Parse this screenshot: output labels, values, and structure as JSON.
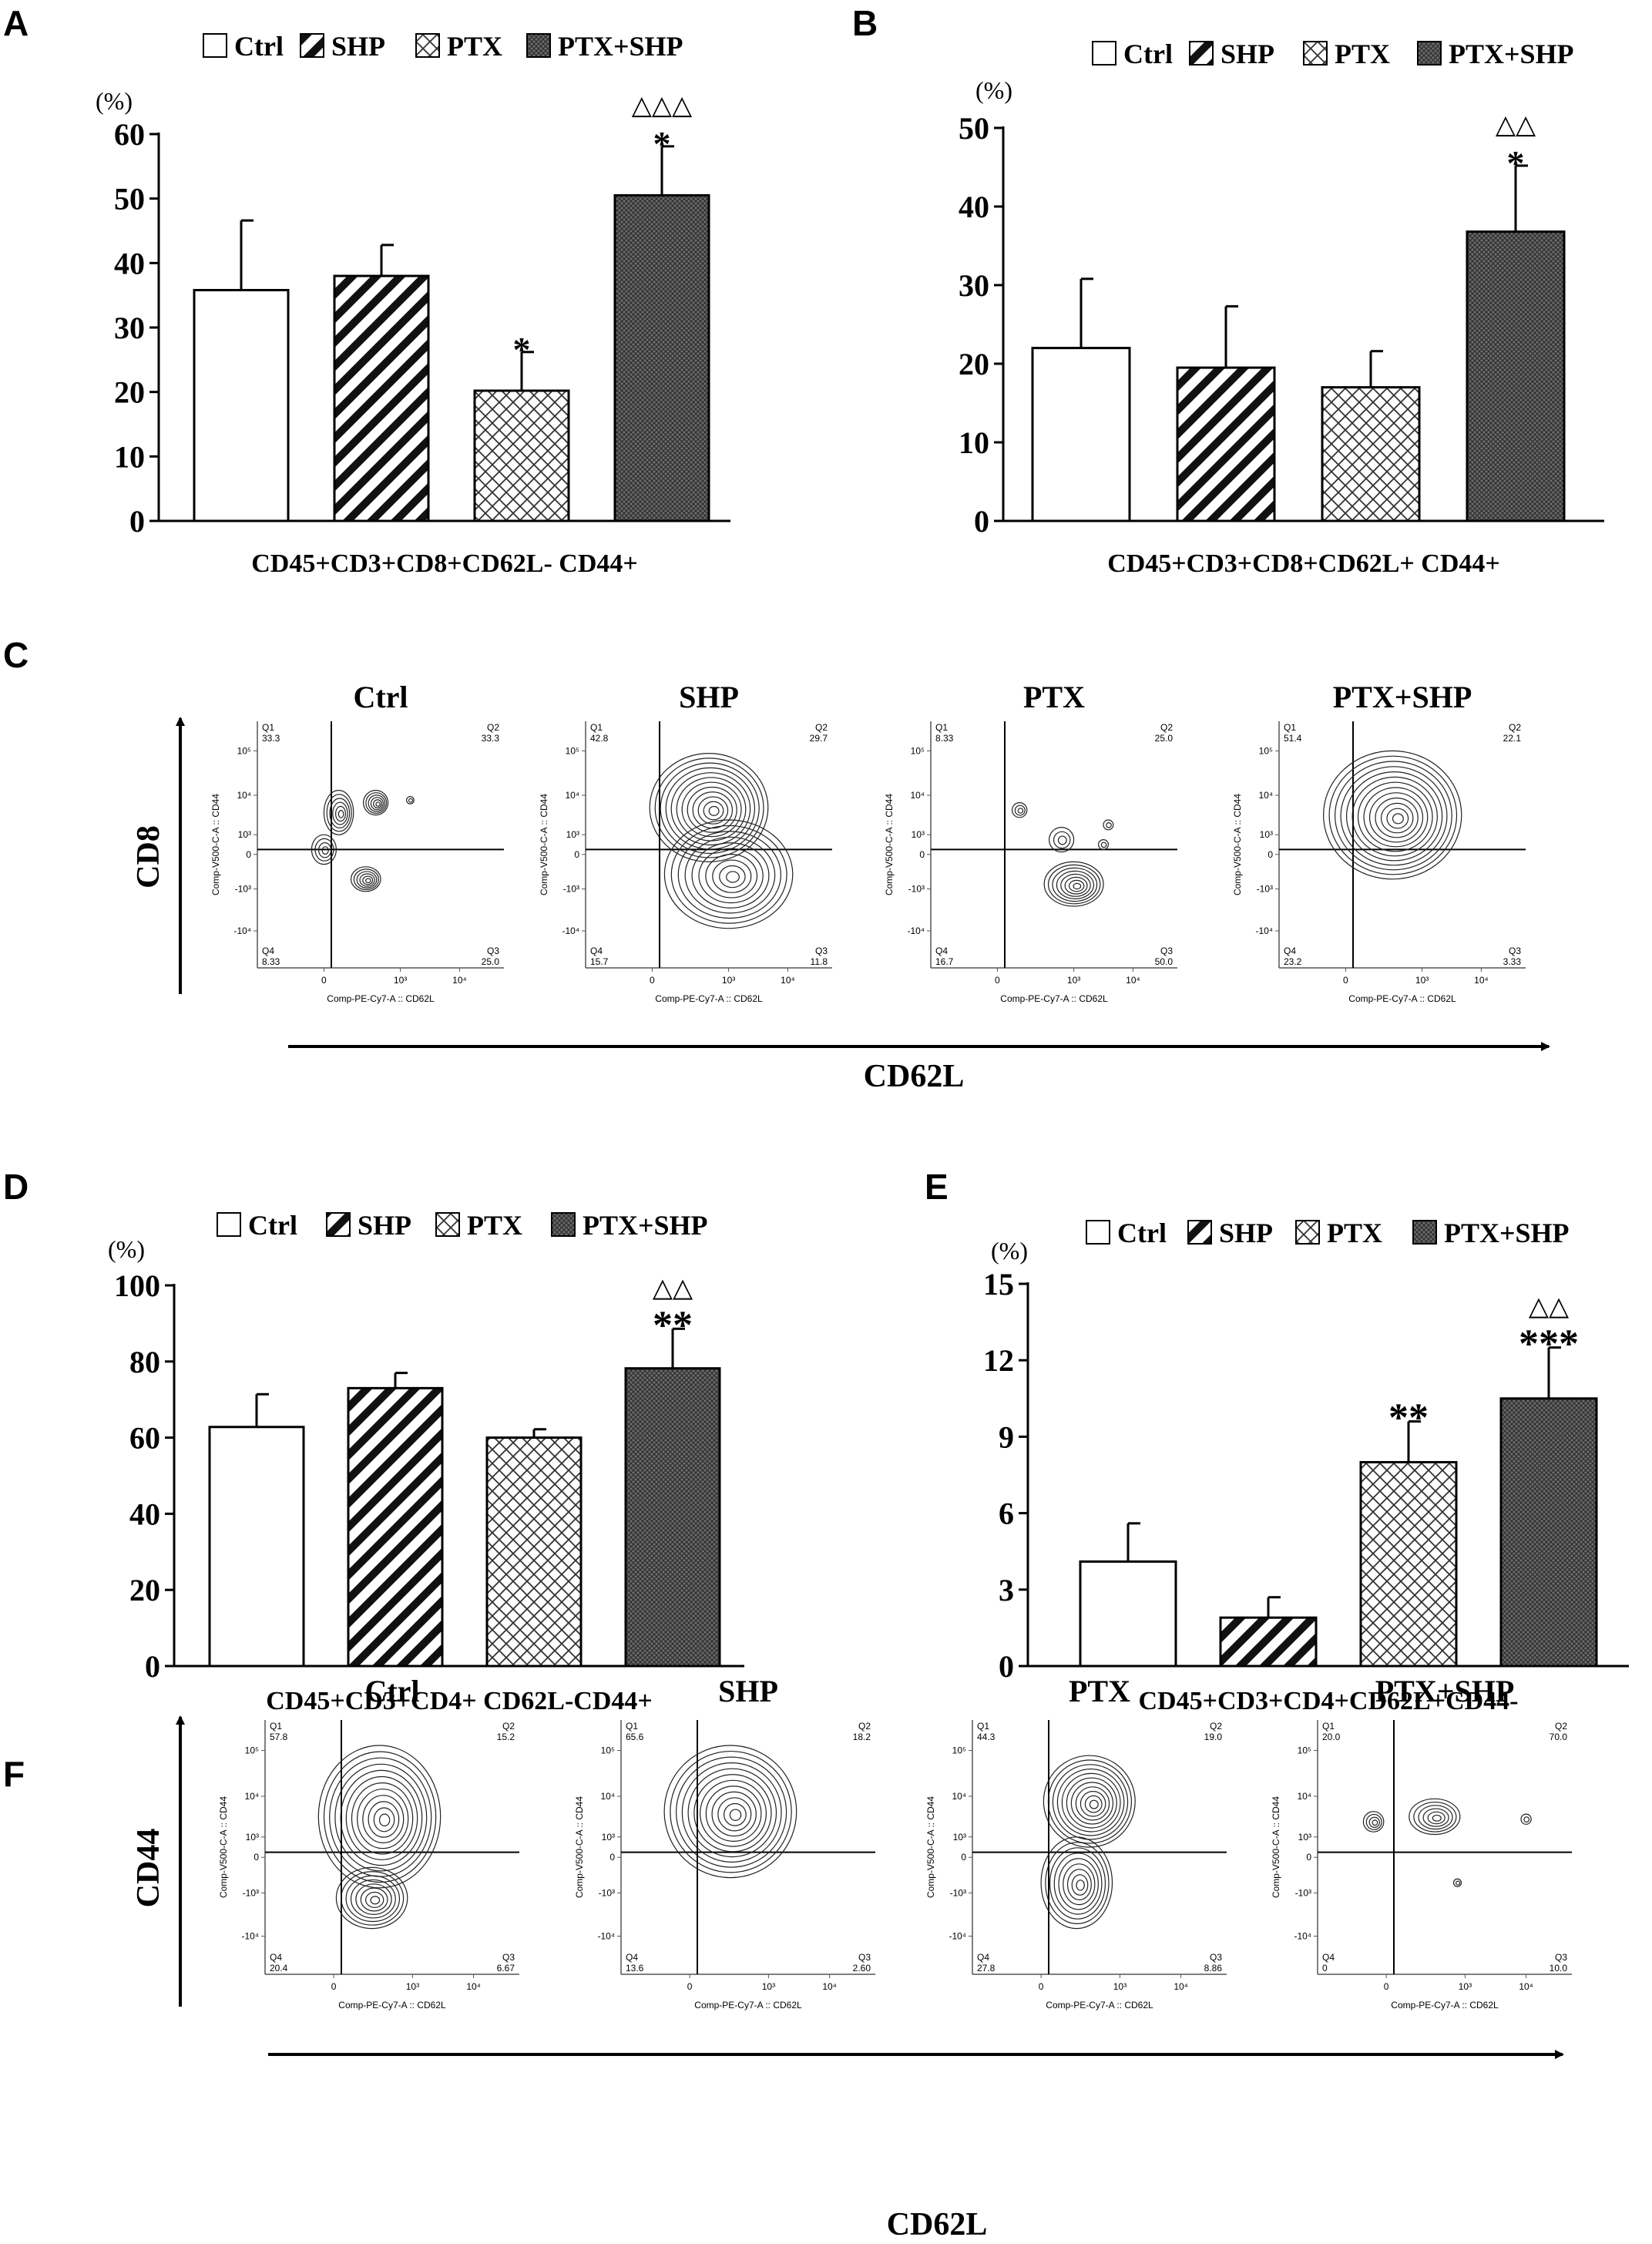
{
  "legend_labels": [
    "Ctrl",
    "SHP",
    "PTX",
    "PTX+SHP"
  ],
  "panel_letters": {
    "A": "A",
    "B": "B",
    "C": "C",
    "D": "D",
    "E": "E",
    "F": "F"
  },
  "chart_data": [
    {
      "panel": "A",
      "type": "bar",
      "categories": [
        "Ctrl",
        "SHP",
        "PTX",
        "PTX+SHP"
      ],
      "values": [
        35.8,
        38.0,
        20.2,
        50.5
      ],
      "errors": [
        10.8,
        4.8,
        6.0,
        7.6
      ],
      "significance": [
        "",
        "",
        "*",
        "*"
      ],
      "significance_vs_ptx": [
        "",
        "",
        "",
        "△△△"
      ],
      "ylim": [
        0,
        60
      ],
      "yticks": [
        "0",
        "10",
        "20",
        "30",
        "40",
        "50",
        "60"
      ],
      "yunit": "(%)",
      "xlabel": "CD45+CD3+CD8+CD62L- CD44+"
    },
    {
      "panel": "B",
      "type": "bar",
      "categories": [
        "Ctrl",
        "SHP",
        "PTX",
        "PTX+SHP"
      ],
      "values": [
        22.0,
        19.5,
        17.0,
        36.8
      ],
      "errors": [
        8.8,
        7.8,
        4.6,
        8.4
      ],
      "significance": [
        "",
        "",
        "",
        "*"
      ],
      "significance_vs_ptx": [
        "",
        "",
        "",
        "△△"
      ],
      "ylim": [
        0,
        50
      ],
      "yticks": [
        "0",
        "10",
        "20",
        "30",
        "40",
        "50"
      ],
      "yunit": "(%)",
      "xlabel": "CD45+CD3+CD8+CD62L+ CD44+"
    },
    {
      "panel": "D",
      "type": "bar",
      "categories": [
        "Ctrl",
        "SHP",
        "PTX",
        "PTX+SHP"
      ],
      "values": [
        62.8,
        73.0,
        60.0,
        78.2
      ],
      "errors": [
        8.6,
        4.0,
        2.2,
        10.4
      ],
      "significance": [
        "",
        "",
        "",
        "**"
      ],
      "significance_vs_ptx": [
        "",
        "",
        "",
        "△△"
      ],
      "ylim": [
        0,
        100
      ],
      "yticks": [
        "0",
        "20",
        "40",
        "60",
        "80",
        "100"
      ],
      "yunit": "(%)",
      "xlabel": "CD45+CD3+CD4+ CD62L-CD44+"
    },
    {
      "panel": "E",
      "type": "bar",
      "categories": [
        "Ctrl",
        "SHP",
        "PTX",
        "PTX+SHP"
      ],
      "values": [
        4.1,
        1.9,
        8.0,
        10.5
      ],
      "errors": [
        1.5,
        0.8,
        1.6,
        2.0
      ],
      "significance": [
        "",
        "",
        "**",
        "***"
      ],
      "significance_vs_ptx": [
        "",
        "",
        "",
        "△△"
      ],
      "ylim": [
        0,
        15
      ],
      "yticks": [
        "0",
        "3",
        "6",
        "9",
        "12",
        "15"
      ],
      "yunit": "(%)",
      "xlabel": "CD45+CD3+CD4+CD62L+CD44-"
    }
  ],
  "flow_panels": [
    {
      "panel": "C",
      "y_axis_name": "CD8",
      "x_axis_name": "CD62L",
      "plots": [
        {
          "title": "Ctrl",
          "q1_label": "Q1",
          "q1": "33.3",
          "q2_label": "Q2",
          "q2": "33.3",
          "q3_label": "Q3",
          "q3": "25.0",
          "q4_label": "Q4",
          "q4": "8.33",
          "x_channel": "Comp-PE-Cy7-A :: CD62L",
          "y_channel": "Comp-V500-C-A :: CD44"
        },
        {
          "title": "SHP",
          "q1_label": "Q1",
          "q1": "42.8",
          "q2_label": "Q2",
          "q2": "29.7",
          "q3_label": "Q3",
          "q3": "11.8",
          "q4_label": "Q4",
          "q4": "15.7",
          "x_channel": "Comp-PE-Cy7-A :: CD62L",
          "y_channel": "Comp-V500-C-A :: CD44"
        },
        {
          "title": "PTX",
          "q1_label": "Q1",
          "q1": "8.33",
          "q2_label": "Q2",
          "q2": "25.0",
          "q3_label": "Q3",
          "q3": "50.0",
          "q4_label": "Q4",
          "q4": "16.7",
          "x_channel": "Comp-PE-Cy7-A :: CD62L",
          "y_channel": "Comp-V500-C-A :: CD44"
        },
        {
          "title": "PTX+SHP",
          "q1_label": "Q1",
          "q1": "51.4",
          "q2_label": "Q2",
          "q2": "22.1",
          "q3_label": "Q3",
          "q3": "3.33",
          "q4_label": "Q4",
          "q4": "23.2",
          "x_channel": "Comp-PE-Cy7-A :: CD62L",
          "y_channel": "Comp-V500-C-A :: CD44"
        }
      ]
    },
    {
      "panel": "F",
      "y_axis_name": "CD44",
      "x_axis_name": "CD62L",
      "plots": [
        {
          "title": "Ctrl",
          "q1_label": "Q1",
          "q1": "57.8",
          "q2_label": "Q2",
          "q2": "15.2",
          "q3_label": "Q3",
          "q3": "6.67",
          "q4_label": "Q4",
          "q4": "20.4",
          "x_channel": "Comp-PE-Cy7-A :: CD62L",
          "y_channel": "Comp-V500-C-A :: CD44"
        },
        {
          "title": "SHP",
          "q1_label": "Q1",
          "q1": "65.6",
          "q2_label": "Q2",
          "q2": "18.2",
          "q3_label": "Q3",
          "q3": "2.60",
          "q4_label": "Q4",
          "q4": "13.6",
          "x_channel": "Comp-PE-Cy7-A :: CD62L",
          "y_channel": "Comp-V500-C-A :: CD44"
        },
        {
          "title": "PTX",
          "q1_label": "Q1",
          "q1": "44.3",
          "q2_label": "Q2",
          "q2": "19.0",
          "q3_label": "Q3",
          "q3": "8.86",
          "q4_label": "Q4",
          "q4": "27.8",
          "x_channel": "Comp-PE-Cy7-A :: CD62L",
          "y_channel": "Comp-V500-C-A :: CD44"
        },
        {
          "title": "PTX+SHP",
          "q1_label": "Q1",
          "q1": "20.0",
          "q2_label": "Q2",
          "q2": "70.0",
          "q3_label": "Q3",
          "q3": "10.0",
          "q4_label": "Q4",
          "q4": "0",
          "x_channel": "Comp-PE-Cy7-A :: CD62L",
          "y_channel": "Comp-V500-C-A :: CD44"
        }
      ]
    }
  ],
  "flow_tick_labels": [
    "10⁵",
    "10⁴",
    "10³",
    "0",
    "-10³",
    "-10⁴"
  ],
  "flow_xtick_labels": [
    "0",
    "10³",
    "10⁴"
  ]
}
